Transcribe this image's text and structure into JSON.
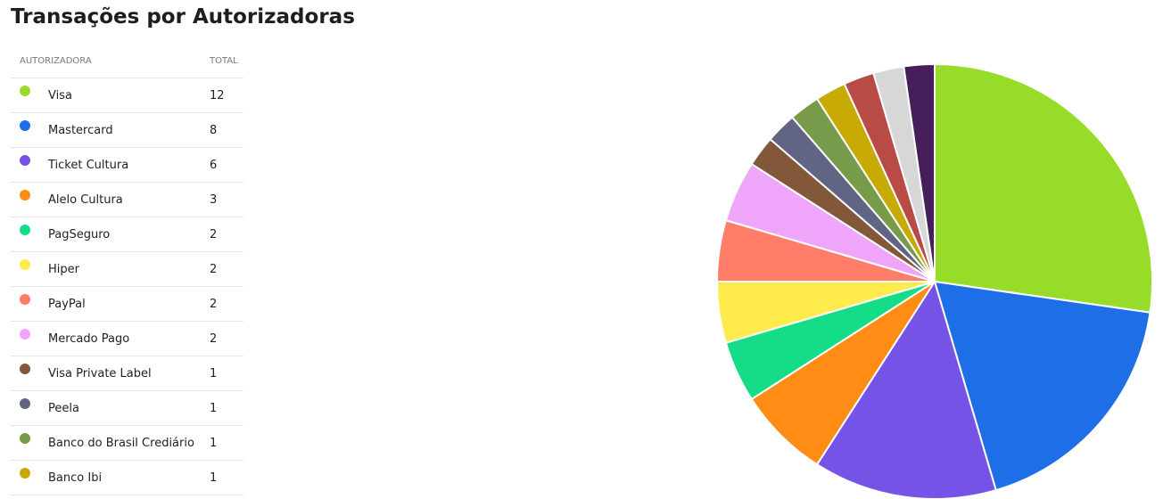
{
  "title": "Transações por Autorizadoras",
  "legend": {
    "header_name": "AUTORIZADORA",
    "header_total": "TOTAL"
  },
  "chart_data": {
    "type": "pie",
    "title": "Transações por Autorizadoras",
    "slices": [
      {
        "label": "Visa",
        "value": 12,
        "color": "#96dc28"
      },
      {
        "label": "Mastercard",
        "value": 8,
        "color": "#1e6ee8"
      },
      {
        "label": "Ticket Cultura",
        "value": 6,
        "color": "#7553e6"
      },
      {
        "label": "Alelo Cultura",
        "value": 3,
        "color": "#ff8c14"
      },
      {
        "label": "PagSeguro",
        "value": 2,
        "color": "#14dc87"
      },
      {
        "label": "Hiper",
        "value": 2,
        "color": "#ffeb4b"
      },
      {
        "label": "PayPal",
        "value": 2,
        "color": "#ff7d69"
      },
      {
        "label": "Mercado Pago",
        "value": 2,
        "color": "#efa5fa"
      },
      {
        "label": "Visa Private Label",
        "value": 1,
        "color": "#82573a"
      },
      {
        "label": "Peela",
        "value": 1,
        "color": "#616482"
      },
      {
        "label": "Banco do Brasil Crediário",
        "value": 1,
        "color": "#789b4b"
      },
      {
        "label": "Banco Ibi",
        "value": 1,
        "color": "#c8aa05"
      },
      {
        "label": "",
        "value": 1,
        "color": "#b94b46"
      },
      {
        "label": "",
        "value": 1,
        "color": "#d7d7d7"
      },
      {
        "label": "",
        "value": 1,
        "color": "#461e5a"
      }
    ]
  }
}
